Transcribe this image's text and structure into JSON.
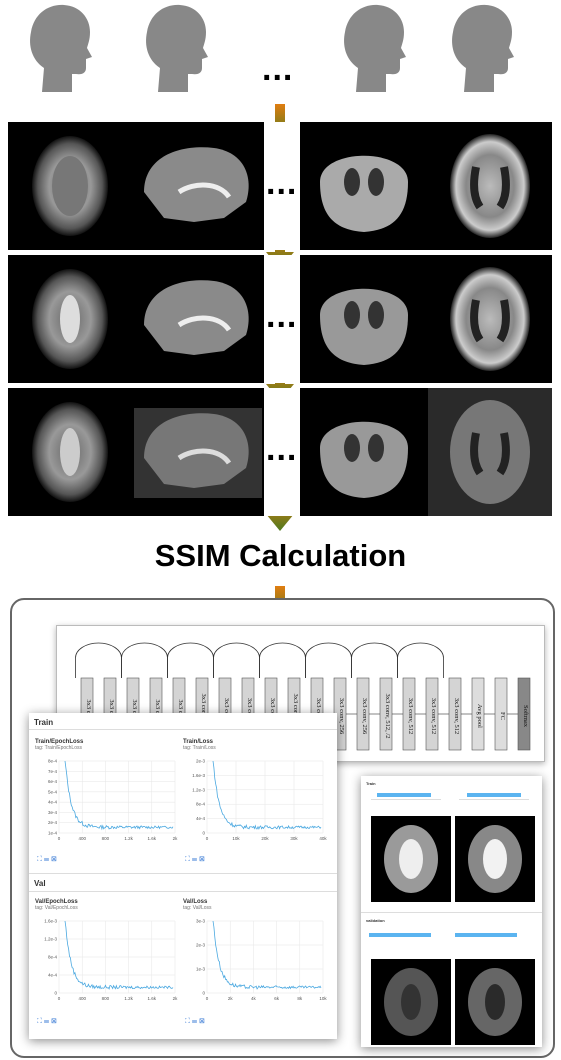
{
  "heading": "SSIM Calculation",
  "ellipsis": "...",
  "colors": {
    "arrow_top": "#e07d10",
    "arrow_bottom": "#4d7a1f",
    "head": "#888888",
    "chart_line": "#4aa8e0"
  },
  "network": {
    "layers": [
      "3x3 conv, 64",
      "3x3 conv, 64",
      "3x3 conv, 64",
      "3x3 conv, 64",
      "3x3 conv, 64",
      "3x3 conv, 128, /2",
      "3x3 conv, 128",
      "3x3 conv, 128",
      "3x3 conv, 128",
      "3x3 conv, 256, /2",
      "3x3 conv, 256",
      "3x3 conv, 256",
      "3x3 conv, 256",
      "3x3 conv, 512, /2",
      "3x3 conv, 512",
      "3x3 conv, 512",
      "3x3 conv, 512",
      "Avg pool",
      "FC",
      "Softmax"
    ]
  },
  "dashboard": {
    "sections": [
      "Train",
      "Val"
    ],
    "charts": [
      {
        "title": "Train/EpochLoss",
        "tag": "tag: Train/EpochLoss",
        "y_ticks": [
          "1e-4",
          "2e-4",
          "3e-4",
          "4e-4",
          "5e-4",
          "6e-4",
          "7e-4",
          "8e-4"
        ],
        "x_ticks": [
          "0",
          "400",
          "800",
          "1.2k",
          "1.6k",
          "2k"
        ]
      },
      {
        "title": "Train/Loss",
        "tag": "tag: Train/Loss",
        "y_ticks": [
          "0",
          "4e-4",
          "8e-4",
          "1.2e-3",
          "1.6e-3",
          "2e-3"
        ],
        "x_ticks": [
          "0",
          "10k",
          "20k",
          "30k",
          "40k"
        ]
      },
      {
        "title": "Val/EpochLoss",
        "tag": "tag: Val/EpochLoss",
        "y_ticks": [
          "0",
          "4e-4",
          "8e-4",
          "1.2e-3",
          "1.6e-3"
        ],
        "x_ticks": [
          "0",
          "400",
          "800",
          "1.2k",
          "1.6k",
          "2k"
        ]
      },
      {
        "title": "Val/Loss",
        "tag": "tag: Val/Loss",
        "y_ticks": [
          "0",
          "1e-3",
          "2e-3",
          "3e-3"
        ],
        "x_ticks": [
          "0",
          "2k",
          "4k",
          "6k",
          "8k",
          "10k"
        ]
      }
    ]
  },
  "image_panel": {
    "sections": [
      "Train",
      "validation"
    ]
  }
}
